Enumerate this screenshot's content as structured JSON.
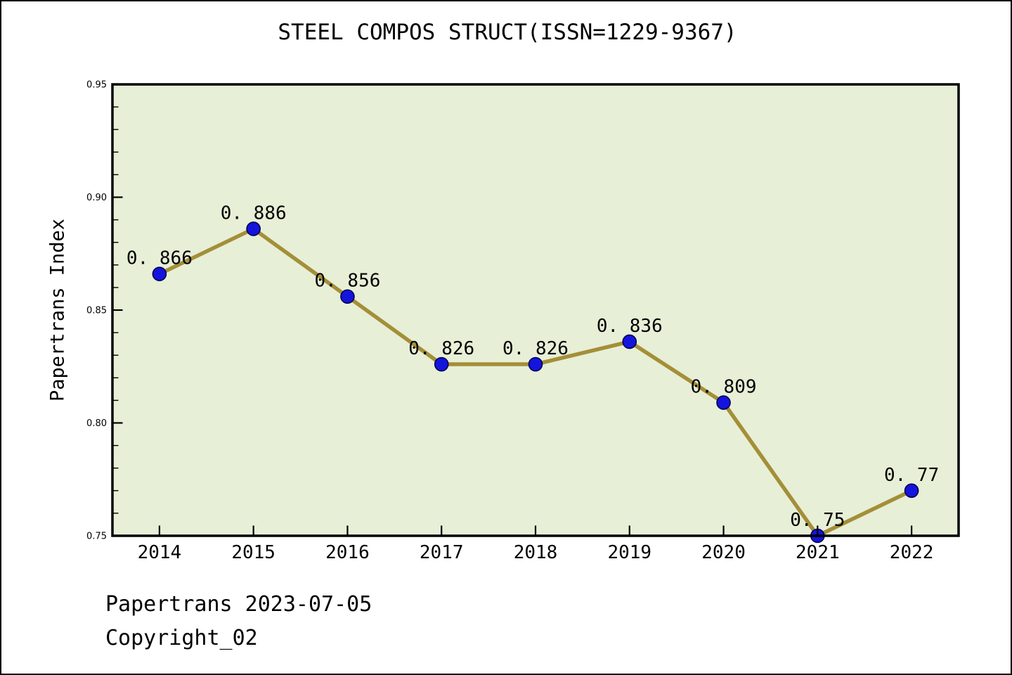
{
  "footer": {
    "line1": "Papertrans 2023-07-05",
    "line2": "Copyright_02"
  },
  "chart_data": {
    "type": "line",
    "title": "STEEL COMPOS STRUCT(ISSN=1229-9367)",
    "xlabel": "",
    "ylabel": "Papertrans Index",
    "x": [
      2014,
      2015,
      2016,
      2017,
      2018,
      2019,
      2020,
      2021,
      2022
    ],
    "values": [
      0.866,
      0.886,
      0.856,
      0.826,
      0.826,
      0.836,
      0.809,
      0.75,
      0.77
    ],
    "point_labels": [
      "0. 866",
      "0. 886",
      "0. 856",
      "0. 826",
      "0. 826",
      "0. 836",
      "0. 809",
      "0. 75",
      "0. 77"
    ],
    "series_name": "Papertrans Index",
    "xlim": [
      2013.5,
      2022.5
    ],
    "ylim": [
      0.75,
      0.95
    ],
    "yticks": [
      0.75,
      0.8,
      0.85,
      0.9,
      0.95
    ],
    "ytick_labels": [
      "0.75",
      "0.80",
      "0.85",
      "0.90",
      "0.95"
    ],
    "y_minor_step": 0.01,
    "xtick_labels": [
      "2014",
      "2015",
      "2016",
      "2017",
      "2018",
      "2019",
      "2020",
      "2021",
      "2022"
    ],
    "grid": false,
    "legend": null,
    "colors": {
      "line": "#a48f38",
      "marker_fill": "#1414dd",
      "marker_edge": "#000050",
      "plot_background": "#e7efd7",
      "frame": "#000000",
      "text": "#000000",
      "figure_background": "#ffffff"
    }
  }
}
